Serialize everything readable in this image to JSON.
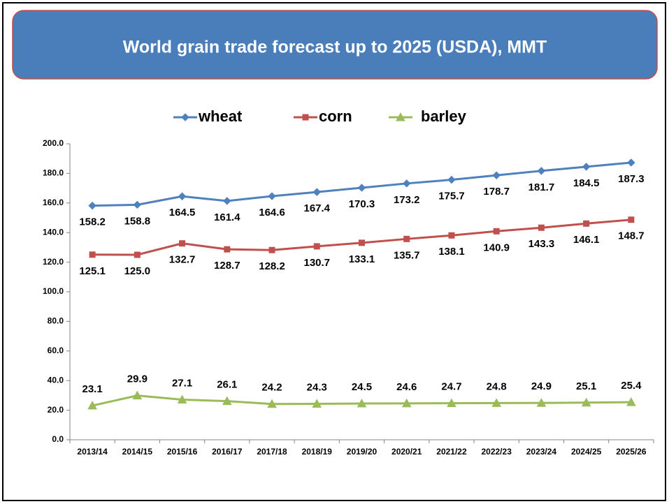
{
  "chart_data": {
    "type": "line",
    "title": "World grain trade forecast up to 2025 (USDA), MMT",
    "categories": [
      "2013/14",
      "2014/15",
      "2015/16",
      "2016/17",
      "2017/18",
      "2018/19",
      "2019/20",
      "2020/21",
      "2021/22",
      "2022/23",
      "2023/24",
      "2024/25",
      "2025/26"
    ],
    "series": [
      {
        "name": "wheat",
        "color": "#4f81bd",
        "marker": "diamond",
        "label_position": "below",
        "values": [
          158.2,
          158.8,
          164.5,
          161.4,
          164.6,
          167.4,
          170.3,
          173.2,
          175.7,
          178.7,
          181.7,
          184.5,
          187.3
        ],
        "value_labels": [
          "158.2",
          "158.8",
          "164.5",
          "161.4",
          "164.6",
          "167.4",
          "170.3",
          "173.2",
          "175.7",
          "178.7",
          "181.7",
          "184.5",
          "187.3"
        ]
      },
      {
        "name": "corn",
        "color": "#c0504d",
        "marker": "square",
        "label_position": "below",
        "values": [
          125.1,
          125.0,
          132.7,
          128.7,
          128.2,
          130.7,
          133.1,
          135.7,
          138.1,
          140.9,
          143.3,
          146.1,
          148.7
        ],
        "value_labels": [
          "125.1",
          "125.0",
          "132.7",
          "128.7",
          "128.2",
          "130.7",
          "133.1",
          "135.7",
          "138.1",
          "140.9",
          "143.3",
          "146.1",
          "148.7"
        ]
      },
      {
        "name": "barley",
        "color": "#9bbb59",
        "marker": "triangle",
        "label_position": "above",
        "values": [
          23.1,
          29.9,
          27.1,
          26.1,
          24.2,
          24.3,
          24.5,
          24.6,
          24.7,
          24.8,
          24.9,
          25.1,
          25.4
        ],
        "value_labels": [
          "23.1",
          "29.9",
          "27.1",
          "26.1",
          "24.2",
          "24.3",
          "24.5",
          "24.6",
          "24.7",
          "24.8",
          "24.9",
          "25.1",
          "25.4"
        ]
      }
    ],
    "ylim": [
      0,
      200
    ],
    "yticks": [
      {
        "value": 0,
        "label": "0.0"
      },
      {
        "value": 20,
        "label": "20.0"
      },
      {
        "value": 40,
        "label": "40.0"
      },
      {
        "value": 60,
        "label": "60.0"
      },
      {
        "value": 80,
        "label": "80.0"
      },
      {
        "value": 100,
        "label": "100.0"
      },
      {
        "value": 120,
        "label": "120.0"
      },
      {
        "value": 140,
        "label": "140.0"
      },
      {
        "value": 160,
        "label": "160.0"
      },
      {
        "value": 180,
        "label": "180.0"
      },
      {
        "value": 200,
        "label": "200.0"
      }
    ],
    "legend": "top"
  }
}
